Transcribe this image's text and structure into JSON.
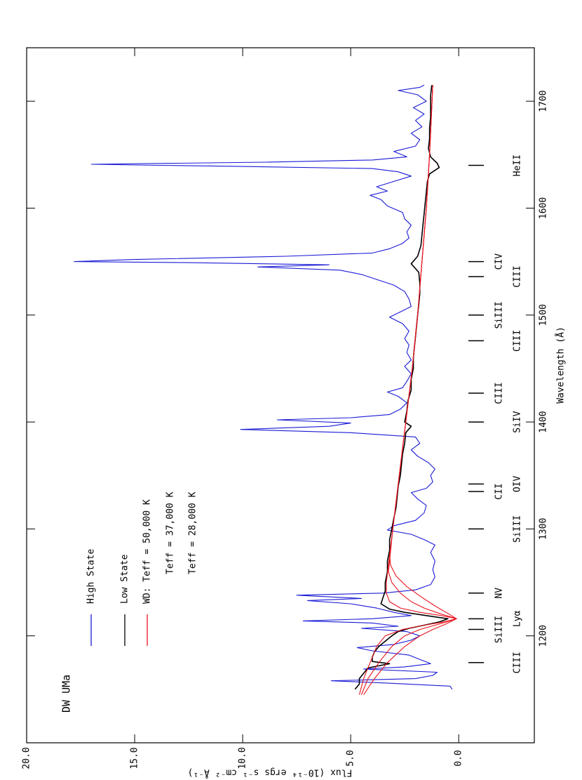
{
  "chart_data": {
    "type": "line",
    "title": "DW UMa",
    "x_label": "Wavelength (Å)",
    "y_label": "Flux (10⁻¹⁴ ergs s⁻¹ cm⁻² Å⁻¹)",
    "xlim": [
      1100,
      1750
    ],
    "xticks": [
      1200,
      1300,
      1400,
      1500,
      1600,
      1700
    ],
    "ylim": [
      -3.5,
      20
    ],
    "yticks": [
      {
        "value": 0,
        "label": "0.0"
      },
      {
        "value": 5,
        "label": "5.0"
      },
      {
        "value": 10,
        "label": "10.0"
      },
      {
        "value": 15,
        "label": "15.0"
      },
      {
        "value": 20,
        "label": "20.0"
      }
    ],
    "grid": false,
    "series": [
      {
        "name": "High State",
        "color": "#1a1ad6",
        "x": [
          1150,
          1153,
          1156,
          1158,
          1160,
          1163,
          1166,
          1169,
          1171,
          1174,
          1178,
          1182,
          1186,
          1189,
          1192,
          1196,
          1200,
          1204,
          1207,
          1209,
          1212,
          1214,
          1216,
          1219,
          1222,
          1226,
          1230,
          1233,
          1235,
          1238,
          1240,
          1243,
          1248,
          1255,
          1262,
          1270,
          1278,
          1285,
          1290,
          1295,
          1299,
          1303,
          1308,
          1315,
          1322,
          1328,
          1334,
          1338,
          1344,
          1350,
          1356,
          1362,
          1368,
          1374,
          1380,
          1386,
          1390,
          1393,
          1396,
          1399,
          1402,
          1404,
          1407,
          1412,
          1418,
          1424,
          1428,
          1432,
          1438,
          1445,
          1452,
          1458,
          1465,
          1472,
          1478,
          1485,
          1492,
          1498,
          1502,
          1508,
          1515,
          1522,
          1528,
          1534,
          1538,
          1542,
          1545,
          1547,
          1549,
          1550,
          1552,
          1555,
          1558,
          1562,
          1567,
          1572,
          1578,
          1584,
          1590,
          1596,
          1602,
          1608,
          1612,
          1616,
          1620,
          1625,
          1630,
          1634,
          1637,
          1639,
          1640,
          1641,
          1643,
          1645,
          1648,
          1653,
          1658,
          1664,
          1670,
          1676,
          1682,
          1688,
          1694,
          1700,
          1706,
          1710,
          1713,
          1715
        ],
        "values": [
          0.3,
          0.4,
          3.5,
          5.9,
          2.0,
          1.2,
          1.0,
          4.4,
          2.5,
          1.3,
          1.8,
          2.3,
          4.0,
          4.7,
          3.0,
          2.2,
          1.8,
          2.4,
          4.5,
          2.8,
          4.0,
          7.2,
          4.0,
          2.2,
          3.0,
          3.8,
          5.0,
          7.0,
          4.5,
          7.5,
          3.5,
          2.0,
          1.3,
          1.1,
          1.2,
          1.1,
          1.3,
          1.1,
          1.6,
          2.2,
          3.3,
          3.0,
          2.0,
          1.6,
          1.5,
          1.9,
          2.2,
          1.5,
          1.2,
          1.3,
          1.1,
          1.4,
          1.9,
          2.2,
          1.8,
          2.0,
          5.0,
          10.1,
          6.0,
          5.0,
          8.4,
          5.0,
          3.2,
          2.7,
          2.4,
          2.8,
          3.3,
          2.6,
          2.4,
          2.2,
          2.5,
          2.2,
          2.4,
          2.3,
          2.5,
          2.3,
          2.6,
          3.2,
          2.8,
          2.2,
          2.3,
          2.5,
          3.0,
          3.9,
          4.5,
          5.5,
          9.3,
          6.0,
          12.5,
          17.8,
          15.0,
          8.0,
          4.0,
          3.2,
          2.6,
          2.3,
          2.4,
          2.2,
          2.5,
          2.6,
          3.3,
          3.6,
          4.1,
          3.3,
          3.8,
          3.0,
          2.2,
          2.8,
          4.0,
          10.0,
          13.8,
          17.0,
          9.0,
          4.0,
          2.4,
          3.0,
          2.0,
          1.8,
          2.2,
          1.7,
          2.0,
          1.6,
          2.1,
          1.5,
          1.9,
          2.8,
          1.8,
          1.6
        ]
      },
      {
        "name": "Low State",
        "color": "#000000",
        "x": [
          1150,
          1155,
          1160,
          1165,
          1170,
          1174,
          1176,
          1180,
          1185,
          1190,
          1195,
          1200,
          1204,
          1207,
          1210,
          1213,
          1216,
          1219,
          1222,
          1225,
          1230,
          1236,
          1242,
          1250,
          1260,
          1270,
          1280,
          1290,
          1300,
          1310,
          1320,
          1330,
          1340,
          1350,
          1360,
          1370,
          1380,
          1390,
          1396,
          1400,
          1410,
          1420,
          1430,
          1440,
          1450,
          1460,
          1470,
          1480,
          1490,
          1500,
          1510,
          1520,
          1530,
          1540,
          1548,
          1555,
          1565,
          1575,
          1585,
          1595,
          1605,
          1615,
          1625,
          1632,
          1638,
          1642,
          1648,
          1656,
          1665,
          1675,
          1685,
          1695,
          1705,
          1715
        ],
        "values": [
          4.8,
          4.6,
          4.6,
          4.4,
          4.2,
          3.2,
          4.0,
          4.0,
          3.9,
          3.7,
          3.4,
          3.1,
          2.8,
          2.3,
          1.6,
          0.9,
          0.5,
          1.5,
          2.5,
          3.2,
          3.6,
          3.5,
          3.4,
          3.4,
          3.3,
          3.3,
          3.2,
          3.2,
          3.1,
          3.0,
          2.9,
          2.85,
          2.8,
          2.7,
          2.65,
          2.6,
          2.5,
          2.45,
          2.2,
          2.5,
          2.4,
          2.35,
          2.2,
          2.2,
          2.1,
          2.1,
          2.05,
          2.0,
          1.95,
          1.9,
          1.85,
          1.8,
          1.8,
          1.85,
          2.2,
          1.9,
          1.75,
          1.7,
          1.65,
          1.6,
          1.55,
          1.5,
          1.45,
          1.35,
          0.9,
          1.0,
          1.3,
          1.4,
          1.35,
          1.35,
          1.3,
          1.3,
          1.3,
          1.25
        ]
      },
      {
        "name": "WD: Teff = 50,000 K",
        "color": "#e8141e",
        "x": [
          1145,
          1160,
          1180,
          1190,
          1200,
          1206,
          1210,
          1213,
          1216,
          1219,
          1222,
          1226,
          1232,
          1240,
          1250,
          1300,
          1350,
          1400,
          1450,
          1500,
          1550,
          1600,
          1650,
          1715
        ],
        "values": [
          4.6,
          4.4,
          4.0,
          3.8,
          3.4,
          2.6,
          1.6,
          0.7,
          0.1,
          0.8,
          1.8,
          2.7,
          3.2,
          3.35,
          3.35,
          3.05,
          2.75,
          2.45,
          2.15,
          1.9,
          1.7,
          1.5,
          1.35,
          1.2
        ]
      },
      {
        "name": "Teff = 37,000 K",
        "color": "#e8141e",
        "x": [
          1145,
          1160,
          1175,
          1190,
          1200,
          1206,
          1211,
          1216,
          1221,
          1226,
          1232,
          1240,
          1250,
          1260,
          1270,
          1300,
          1350,
          1400,
          1450,
          1500,
          1550,
          1600,
          1650,
          1715
        ],
        "values": [
          4.5,
          4.2,
          3.7,
          3.1,
          2.5,
          1.8,
          0.9,
          0.1,
          0.9,
          1.6,
          2.2,
          2.7,
          3.1,
          3.25,
          3.2,
          3.05,
          2.75,
          2.45,
          2.15,
          1.9,
          1.7,
          1.5,
          1.35,
          1.2
        ]
      },
      {
        "name": "Teff = 28,000 K",
        "color": "#e8141e",
        "x": [
          1145,
          1160,
          1175,
          1190,
          1200,
          1206,
          1211,
          1216,
          1221,
          1228,
          1236,
          1246,
          1256,
          1266,
          1276,
          1300,
          1350,
          1400,
          1450,
          1500,
          1550,
          1600,
          1650,
          1715
        ],
        "values": [
          4.4,
          3.9,
          3.3,
          2.5,
          1.8,
          1.2,
          0.6,
          0.1,
          0.5,
          1.1,
          1.7,
          2.4,
          2.9,
          3.15,
          3.2,
          3.05,
          2.75,
          2.45,
          2.15,
          1.9,
          1.7,
          1.5,
          1.35,
          1.2
        ]
      }
    ],
    "line_ids": [
      {
        "label": "CIII",
        "x": 1175
      },
      {
        "label": "SiIII",
        "x": 1206
      },
      {
        "label": "Lyα",
        "x": 1216
      },
      {
        "label": "NV",
        "x": 1240
      },
      {
        "label": "SiIII",
        "x": 1300
      },
      {
        "label": "CII",
        "x": 1335
      },
      {
        "label": "OIV",
        "x": 1342
      },
      {
        "label": "SiIV",
        "x": 1400
      },
      {
        "label": "CIII",
        "x": 1427
      },
      {
        "label": "CIII",
        "x": 1476
      },
      {
        "label": "SiIII",
        "x": 1500
      },
      {
        "label": "CIII",
        "x": 1536
      },
      {
        "label": "CIV",
        "x": 1550
      },
      {
        "label": "HeII",
        "x": 1640
      }
    ]
  }
}
